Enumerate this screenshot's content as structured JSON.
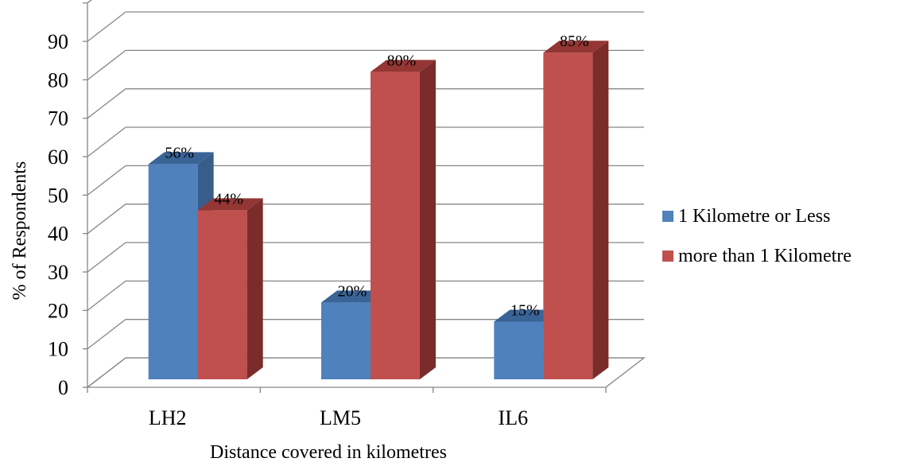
{
  "chart_data": {
    "type": "bar",
    "categories": [
      "LH2",
      "LM5",
      "IL6"
    ],
    "series": [
      {
        "name": "1 Kilometre or Less",
        "values": [
          56,
          20,
          15
        ],
        "labels": [
          "56%",
          "20%",
          "15%"
        ],
        "color": "#4F81BD",
        "side_color": "#385D8A",
        "top_color": "#3A6396"
      },
      {
        "name": "more than 1 Kilometre",
        "values": [
          44,
          80,
          85
        ],
        "labels": [
          "44%",
          "80%",
          "85%"
        ],
        "color": "#C0504D",
        "side_color": "#7B2C2A",
        "top_color": "#943634"
      }
    ],
    "y_ticks": [
      "0",
      "10",
      "20",
      "30",
      "40",
      "50",
      "60",
      "70",
      "80",
      "90"
    ],
    "ylim": [
      0,
      100
    ],
    "ylabel": "% of Respondents",
    "xlabel": "Distance covered in kilometres",
    "grid": true,
    "legend_position": "right",
    "style": "3d-column"
  }
}
